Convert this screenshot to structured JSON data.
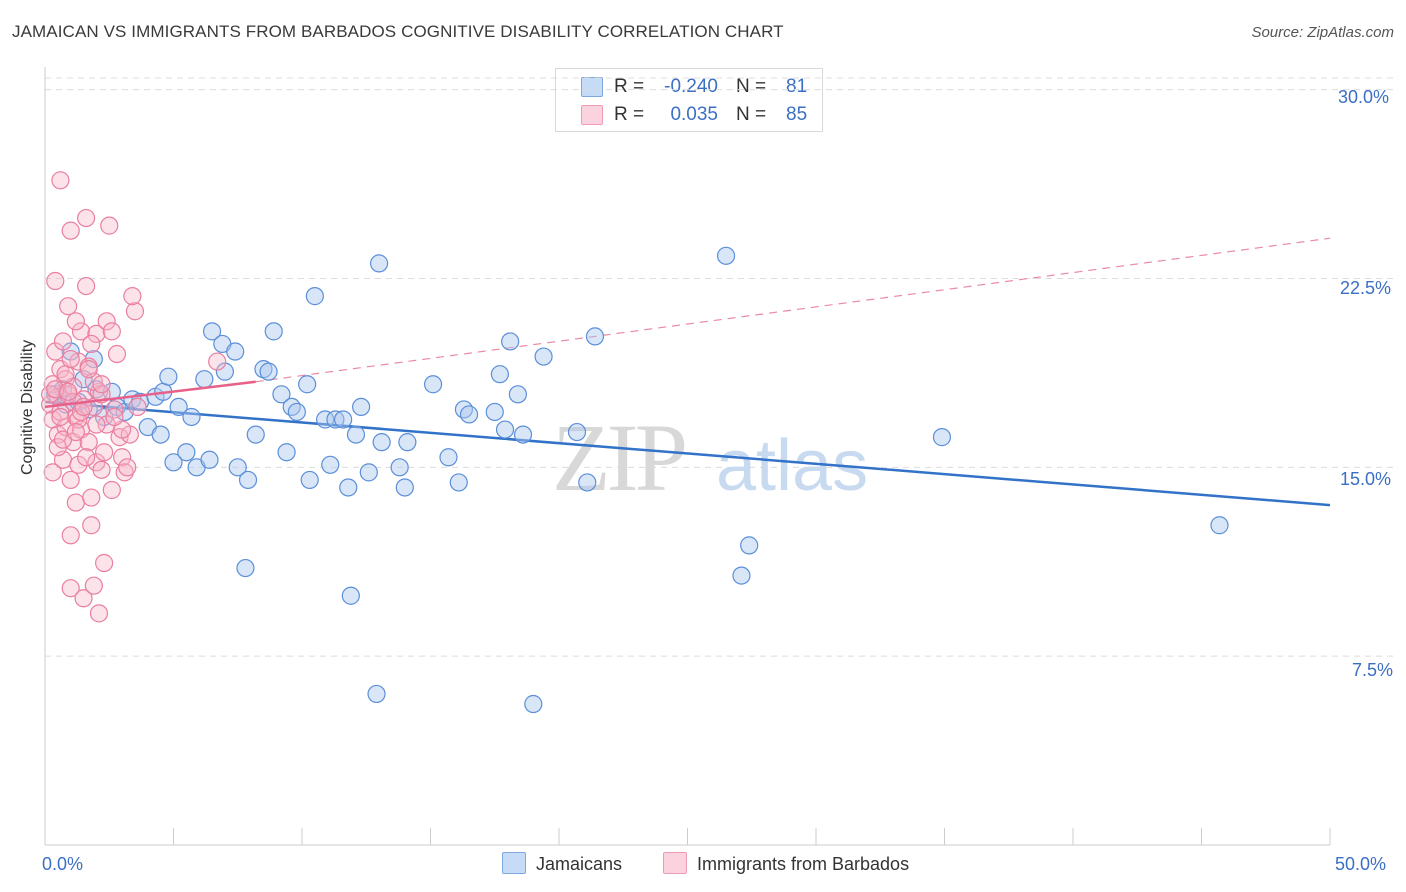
{
  "header": {
    "title": "JAMAICAN VS IMMIGRANTS FROM BARBADOS COGNITIVE DISABILITY CORRELATION CHART",
    "source": "Source: ZipAtlas.com"
  },
  "watermark": {
    "zip": "ZIP",
    "atlas": "atlas"
  },
  "stats": [
    {
      "r_label": "R =",
      "r_value": "-0.240",
      "n_label": "N =",
      "n_value": "81",
      "color": "#aac8f0"
    },
    {
      "r_label": "R =",
      "r_value": "0.035",
      "n_label": "N =",
      "n_value": "85",
      "color": "#f7b6c9"
    }
  ],
  "legend": {
    "jamaicans": "Jamaicans",
    "barbados": "Immigrants from Barbados"
  },
  "axes": {
    "ylabel": "Cognitive Disability",
    "x_min_label": "0.0%",
    "x_max_label": "50.0%",
    "y_ticks": [
      "30.0%",
      "22.5%",
      "15.0%",
      "7.5%"
    ]
  },
  "chart_data": {
    "type": "scatter",
    "xlim": [
      0,
      50
    ],
    "ylim": [
      0,
      30.9
    ],
    "grid": "horizontal dashed",
    "legend_position": "bottom-center",
    "colors": {
      "jamaicans": "#5b8fd9",
      "barbados": "#ea7fa0",
      "blue_line": "#3272c8",
      "pink_line": "#e8618b"
    },
    "series": [
      {
        "name": "Jamaicans",
        "points": [
          [
            0.4,
            17.9
          ],
          [
            0.7,
            18.1
          ],
          [
            0.8,
            17.5
          ],
          [
            1.0,
            19.6
          ],
          [
            1.3,
            17.6
          ],
          [
            1.5,
            18.5
          ],
          [
            1.7,
            17.3
          ],
          [
            1.9,
            19.3
          ],
          [
            2.0,
            18.1
          ],
          [
            2.3,
            17.0
          ],
          [
            2.6,
            18.0
          ],
          [
            2.8,
            17.4
          ],
          [
            3.1,
            17.2
          ],
          [
            3.4,
            17.7
          ],
          [
            3.7,
            17.6
          ],
          [
            4.0,
            16.6
          ],
          [
            4.3,
            17.8
          ],
          [
            4.5,
            16.3
          ],
          [
            4.6,
            18.0
          ],
          [
            4.8,
            18.6
          ],
          [
            5.0,
            15.2
          ],
          [
            5.2,
            17.4
          ],
          [
            5.5,
            15.6
          ],
          [
            5.7,
            17.0
          ],
          [
            5.9,
            15.0
          ],
          [
            6.2,
            18.5
          ],
          [
            6.4,
            15.3
          ],
          [
            6.5,
            20.4
          ],
          [
            6.9,
            19.9
          ],
          [
            7.0,
            18.8
          ],
          [
            7.4,
            19.6
          ],
          [
            7.5,
            15.0
          ],
          [
            7.9,
            14.5
          ],
          [
            7.8,
            11.0
          ],
          [
            8.2,
            16.3
          ],
          [
            8.5,
            18.9
          ],
          [
            8.7,
            18.8
          ],
          [
            8.9,
            20.4
          ],
          [
            9.2,
            17.9
          ],
          [
            9.4,
            15.6
          ],
          [
            9.6,
            17.4
          ],
          [
            9.8,
            17.2
          ],
          [
            10.2,
            18.3
          ],
          [
            10.3,
            14.5
          ],
          [
            10.5,
            21.8
          ],
          [
            10.9,
            16.9
          ],
          [
            11.1,
            15.1
          ],
          [
            11.3,
            16.9
          ],
          [
            11.6,
            16.9
          ],
          [
            11.8,
            14.2
          ],
          [
            12.1,
            16.3
          ],
          [
            12.3,
            17.4
          ],
          [
            12.6,
            14.8
          ],
          [
            13.0,
            23.1
          ],
          [
            13.1,
            16.0
          ],
          [
            13.8,
            15.0
          ],
          [
            14.0,
            14.2
          ],
          [
            14.1,
            16.0
          ],
          [
            15.1,
            18.3
          ],
          [
            15.7,
            15.4
          ],
          [
            16.1,
            14.4
          ],
          [
            16.3,
            17.3
          ],
          [
            16.5,
            17.1
          ],
          [
            17.5,
            17.2
          ],
          [
            17.7,
            18.7
          ],
          [
            17.9,
            16.5
          ],
          [
            18.1,
            20.0
          ],
          [
            18.4,
            17.9
          ],
          [
            18.6,
            16.3
          ],
          [
            19.4,
            19.4
          ],
          [
            20.7,
            16.4
          ],
          [
            21.1,
            14.4
          ],
          [
            21.4,
            20.2
          ],
          [
            26.5,
            23.4
          ],
          [
            27.1,
            10.7
          ],
          [
            27.4,
            11.9
          ],
          [
            34.9,
            16.2
          ],
          [
            45.7,
            12.7
          ],
          [
            11.9,
            9.9
          ],
          [
            12.9,
            6.0
          ],
          [
            19.0,
            5.6
          ]
        ]
      },
      {
        "name": "Immigrants from Barbados",
        "points": [
          [
            0.2,
            17.5
          ],
          [
            0.3,
            18.3
          ],
          [
            0.3,
            16.9
          ],
          [
            0.4,
            19.6
          ],
          [
            0.5,
            17.8
          ],
          [
            0.5,
            16.3
          ],
          [
            0.6,
            18.9
          ],
          [
            0.6,
            17.2
          ],
          [
            0.7,
            15.3
          ],
          [
            0.7,
            20.0
          ],
          [
            0.8,
            18.5
          ],
          [
            0.8,
            16.6
          ],
          [
            0.9,
            17.9
          ],
          [
            0.9,
            21.4
          ],
          [
            1.0,
            14.5
          ],
          [
            1.0,
            12.3
          ],
          [
            1.0,
            10.2
          ],
          [
            1.1,
            16.0
          ],
          [
            1.1,
            18.2
          ],
          [
            1.2,
            13.6
          ],
          [
            1.2,
            17.0
          ],
          [
            1.3,
            19.2
          ],
          [
            1.3,
            15.1
          ],
          [
            1.4,
            16.5
          ],
          [
            1.4,
            20.4
          ],
          [
            1.5,
            9.8
          ],
          [
            1.5,
            17.7
          ],
          [
            1.6,
            24.9
          ],
          [
            1.6,
            22.2
          ],
          [
            1.7,
            19.0
          ],
          [
            1.7,
            16.0
          ],
          [
            1.8,
            13.8
          ],
          [
            1.8,
            12.7
          ],
          [
            1.9,
            10.3
          ],
          [
            1.9,
            17.4
          ],
          [
            2.0,
            20.3
          ],
          [
            2.0,
            15.2
          ],
          [
            2.1,
            9.2
          ],
          [
            2.1,
            18.0
          ],
          [
            2.2,
            14.9
          ],
          [
            2.3,
            11.2
          ],
          [
            2.4,
            16.7
          ],
          [
            2.4,
            20.8
          ],
          [
            2.5,
            24.6
          ],
          [
            2.6,
            14.1
          ],
          [
            2.7,
            17.3
          ],
          [
            2.8,
            19.5
          ],
          [
            2.9,
            16.2
          ],
          [
            3.0,
            15.4
          ],
          [
            3.1,
            14.8
          ],
          [
            3.3,
            16.3
          ],
          [
            3.5,
            21.2
          ],
          [
            3.6,
            17.4
          ],
          [
            0.4,
            22.4
          ],
          [
            0.6,
            26.4
          ],
          [
            1.0,
            24.4
          ],
          [
            1.2,
            20.8
          ],
          [
            0.3,
            14.8
          ],
          [
            0.5,
            15.8
          ],
          [
            0.8,
            18.7
          ],
          [
            1.1,
            17.6
          ],
          [
            1.3,
            16.9
          ],
          [
            1.6,
            15.4
          ],
          [
            1.9,
            18.4
          ],
          [
            2.2,
            17.9
          ],
          [
            2.6,
            20.4
          ],
          [
            3.0,
            16.5
          ],
          [
            3.4,
            21.8
          ],
          [
            0.2,
            17.9
          ],
          [
            0.4,
            18.1
          ],
          [
            0.6,
            17.0
          ],
          [
            0.7,
            16.1
          ],
          [
            1.0,
            19.3
          ],
          [
            1.4,
            17.2
          ],
          [
            1.7,
            18.9
          ],
          [
            2.0,
            16.7
          ],
          [
            2.3,
            15.6
          ],
          [
            2.7,
            17.0
          ],
          [
            3.2,
            15.0
          ],
          [
            6.7,
            19.2
          ],
          [
            0.9,
            18.0
          ],
          [
            1.2,
            16.4
          ],
          [
            1.5,
            17.4
          ],
          [
            1.8,
            19.9
          ],
          [
            2.2,
            18.3
          ]
        ]
      }
    ],
    "trend_lines": {
      "jamaicans": {
        "x": [
          0,
          50
        ],
        "y": [
          17.6,
          13.5
        ]
      },
      "barbados_solid": {
        "x": [
          0,
          8.2
        ],
        "y": [
          17.4,
          18.4
        ]
      },
      "barbados_dashed": {
        "x": [
          8.2,
          50
        ],
        "y": [
          18.4,
          24.1
        ]
      }
    }
  }
}
